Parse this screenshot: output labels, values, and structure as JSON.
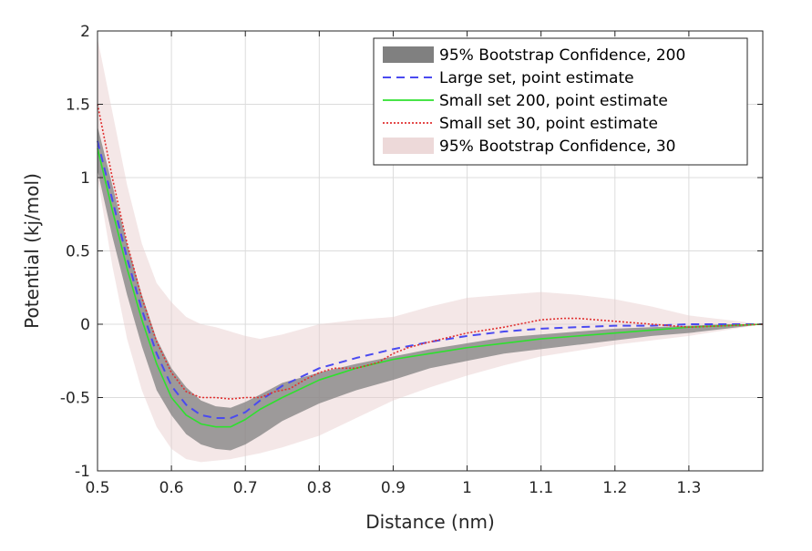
{
  "chart_data": {
    "type": "line",
    "title": "",
    "xlabel": "Distance (nm)",
    "ylabel": "Potential (kj/mol)",
    "xlim": [
      0.5,
      1.4
    ],
    "ylim": [
      -1,
      2
    ],
    "xticks": [
      0.5,
      0.6,
      0.7,
      0.8,
      0.9,
      1.0,
      1.1,
      1.2,
      1.3
    ],
    "xtick_labels": [
      "0.5",
      "0.6",
      "0.7",
      "0.8",
      "0.9",
      "1",
      "1.1",
      "1.2",
      "1.3"
    ],
    "yticks": [
      -1,
      -0.5,
      0,
      0.5,
      1,
      1.5,
      2
    ],
    "ytick_labels": [
      "-1",
      "-0.5",
      "0",
      "0.5",
      "1",
      "1.5",
      "2"
    ],
    "grid": true,
    "legend_position": "top-right",
    "series": [
      {
        "name": "95% Bootstrap Confidence, 200",
        "kind": "band",
        "color": "#808080",
        "opacity": 0.75,
        "x": [
          0.5,
          0.52,
          0.54,
          0.56,
          0.58,
          0.6,
          0.62,
          0.64,
          0.66,
          0.68,
          0.7,
          0.72,
          0.75,
          0.8,
          0.85,
          0.9,
          0.95,
          1.0,
          1.05,
          1.1,
          1.15,
          1.2,
          1.25,
          1.3,
          1.35,
          1.4
        ],
        "lower": [
          1.05,
          0.6,
          0.2,
          -0.15,
          -0.45,
          -0.62,
          -0.75,
          -0.82,
          -0.85,
          -0.86,
          -0.82,
          -0.76,
          -0.66,
          -0.54,
          -0.45,
          -0.38,
          -0.3,
          -0.25,
          -0.2,
          -0.17,
          -0.14,
          -0.11,
          -0.08,
          -0.06,
          -0.03,
          0.0
        ],
        "upper": [
          1.35,
          0.95,
          0.55,
          0.2,
          -0.1,
          -0.3,
          -0.43,
          -0.52,
          -0.56,
          -0.57,
          -0.53,
          -0.48,
          -0.4,
          -0.33,
          -0.27,
          -0.22,
          -0.17,
          -0.13,
          -0.09,
          -0.07,
          -0.05,
          -0.03,
          -0.02,
          -0.01,
          0.0,
          0.0
        ]
      },
      {
        "name": "95% Bootstrap Confidence, 30",
        "kind": "band",
        "color": "#e6c9c9",
        "opacity": 0.45,
        "x": [
          0.5,
          0.52,
          0.54,
          0.56,
          0.58,
          0.6,
          0.62,
          0.64,
          0.66,
          0.68,
          0.7,
          0.72,
          0.75,
          0.8,
          0.85,
          0.9,
          0.95,
          1.0,
          1.05,
          1.1,
          1.15,
          1.2,
          1.25,
          1.3,
          1.35,
          1.4
        ],
        "lower": [
          1.0,
          0.4,
          -0.1,
          -0.45,
          -0.7,
          -0.85,
          -0.92,
          -0.94,
          -0.93,
          -0.92,
          -0.9,
          -0.88,
          -0.84,
          -0.76,
          -0.64,
          -0.52,
          -0.43,
          -0.35,
          -0.28,
          -0.22,
          -0.18,
          -0.14,
          -0.11,
          -0.08,
          -0.04,
          0.0
        ],
        "upper": [
          1.95,
          1.45,
          0.95,
          0.55,
          0.28,
          0.15,
          0.05,
          0.0,
          -0.02,
          -0.05,
          -0.08,
          -0.1,
          -0.07,
          0.0,
          0.03,
          0.05,
          0.12,
          0.18,
          0.2,
          0.22,
          0.2,
          0.17,
          0.12,
          0.06,
          0.03,
          0.0
        ]
      },
      {
        "name": "Large set, point estimate",
        "kind": "line",
        "style": "dashed",
        "color": "#4a4af0",
        "x": [
          0.5,
          0.52,
          0.54,
          0.56,
          0.58,
          0.6,
          0.62,
          0.64,
          0.66,
          0.68,
          0.7,
          0.72,
          0.75,
          0.8,
          0.85,
          0.9,
          0.95,
          1.0,
          1.05,
          1.1,
          1.15,
          1.2,
          1.25,
          1.3,
          1.35,
          1.4
        ],
        "y": [
          1.25,
          0.85,
          0.45,
          0.1,
          -0.2,
          -0.42,
          -0.55,
          -0.62,
          -0.64,
          -0.64,
          -0.6,
          -0.52,
          -0.42,
          -0.3,
          -0.23,
          -0.17,
          -0.12,
          -0.08,
          -0.05,
          -0.03,
          -0.02,
          -0.01,
          -0.01,
          0.0,
          0.0,
          0.0
        ]
      },
      {
        "name": "Small set 200, point estimate",
        "kind": "line",
        "style": "solid",
        "color": "#2ee02e",
        "x": [
          0.5,
          0.52,
          0.54,
          0.56,
          0.58,
          0.6,
          0.62,
          0.64,
          0.66,
          0.68,
          0.7,
          0.72,
          0.75,
          0.8,
          0.85,
          0.9,
          0.95,
          1.0,
          1.05,
          1.1,
          1.15,
          1.2,
          1.25,
          1.3,
          1.35,
          1.4
        ],
        "y": [
          1.2,
          0.78,
          0.38,
          0.03,
          -0.27,
          -0.5,
          -0.62,
          -0.68,
          -0.7,
          -0.7,
          -0.65,
          -0.58,
          -0.5,
          -0.38,
          -0.3,
          -0.24,
          -0.2,
          -0.16,
          -0.13,
          -0.1,
          -0.08,
          -0.06,
          -0.04,
          -0.02,
          -0.01,
          0.0
        ]
      },
      {
        "name": "Small set 30, point estimate",
        "kind": "line",
        "style": "dotted",
        "color": "#e03030",
        "x": [
          0.5,
          0.52,
          0.54,
          0.56,
          0.58,
          0.6,
          0.62,
          0.64,
          0.66,
          0.68,
          0.7,
          0.72,
          0.74,
          0.76,
          0.78,
          0.8,
          0.82,
          0.85,
          0.88,
          0.9,
          0.92,
          0.95,
          1.0,
          1.05,
          1.1,
          1.13,
          1.15,
          1.2,
          1.25,
          1.3,
          1.35,
          1.4
        ],
        "y": [
          1.5,
          1.0,
          0.55,
          0.18,
          -0.12,
          -0.33,
          -0.46,
          -0.5,
          -0.5,
          -0.51,
          -0.5,
          -0.5,
          -0.46,
          -0.44,
          -0.38,
          -0.33,
          -0.3,
          -0.3,
          -0.26,
          -0.2,
          -0.16,
          -0.12,
          -0.06,
          -0.02,
          0.03,
          0.04,
          0.04,
          0.02,
          0.0,
          -0.02,
          -0.01,
          0.0
        ]
      }
    ],
    "legend_order": [
      0,
      2,
      3,
      4,
      1
    ]
  }
}
